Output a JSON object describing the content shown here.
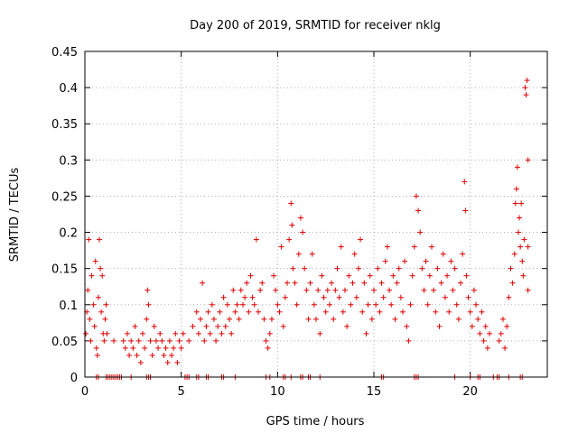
{
  "chart_data": {
    "type": "scatter",
    "title": "Day 200 of 2019, SRMTID for receiver nklg",
    "xlabel": "GPS time / hours",
    "ylabel": "SRMTID / TECUs",
    "xlim": [
      0,
      24
    ],
    "ylim": [
      0,
      0.45
    ],
    "x_ticks": [
      0,
      5,
      10,
      15,
      20
    ],
    "y_ticks": [
      0,
      0.05,
      0.1,
      0.15,
      0.2,
      0.25,
      0.3,
      0.35,
      0.4,
      0.45
    ],
    "grid": true,
    "marker": "+",
    "color": "#e00000",
    "series": [
      {
        "values": [
          [
            0.05,
            0.06
          ],
          [
            0.1,
            0.09
          ],
          [
            0.15,
            0.12
          ],
          [
            0.2,
            0.19
          ],
          [
            0.25,
            0.08
          ],
          [
            0.3,
            0.05
          ],
          [
            0.35,
            0.14
          ],
          [
            0.45,
            0.1
          ],
          [
            0.5,
            0.07
          ],
          [
            0.55,
            0.16
          ],
          [
            0.6,
            0.04
          ],
          [
            0.65,
            0.03
          ],
          [
            0.7,
            0.11
          ],
          [
            0.75,
            0.19
          ],
          [
            0.8,
            0.15
          ],
          [
            0.85,
            0.09
          ],
          [
            0.9,
            0.14
          ],
          [
            0.95,
            0.06
          ],
          [
            1.0,
            0.05
          ],
          [
            1.05,
            0.08
          ],
          [
            1.1,
            0.1
          ],
          [
            1.15,
            0.06
          ],
          [
            1.5,
            0.05
          ],
          [
            2.0,
            0.05
          ],
          [
            2.1,
            0.04
          ],
          [
            2.2,
            0.06
          ],
          [
            2.3,
            0.03
          ],
          [
            2.4,
            0.05
          ],
          [
            2.5,
            0.04
          ],
          [
            2.6,
            0.07
          ],
          [
            2.7,
            0.03
          ],
          [
            2.8,
            0.05
          ],
          [
            2.9,
            0.02
          ],
          [
            3.0,
            0.06
          ],
          [
            3.1,
            0.04
          ],
          [
            3.2,
            0.08
          ],
          [
            3.25,
            0.12
          ],
          [
            3.3,
            0.1
          ],
          [
            3.4,
            0.05
          ],
          [
            3.5,
            0.03
          ],
          [
            3.6,
            0.07
          ],
          [
            3.7,
            0.05
          ],
          [
            3.8,
            0.04
          ],
          [
            3.9,
            0.06
          ],
          [
            4.0,
            0.05
          ],
          [
            4.1,
            0.03
          ],
          [
            4.2,
            0.04
          ],
          [
            4.3,
            0.02
          ],
          [
            4.4,
            0.05
          ],
          [
            4.5,
            0.03
          ],
          [
            4.6,
            0.04
          ],
          [
            4.7,
            0.06
          ],
          [
            4.8,
            0.02
          ],
          [
            4.9,
            0.05
          ],
          [
            5.0,
            0.04
          ],
          [
            5.1,
            0.06
          ],
          [
            5.4,
            0.05
          ],
          [
            5.6,
            0.07
          ],
          [
            5.8,
            0.09
          ],
          [
            5.9,
            0.06
          ],
          [
            6.0,
            0.08
          ],
          [
            6.1,
            0.13
          ],
          [
            6.2,
            0.05
          ],
          [
            6.3,
            0.07
          ],
          [
            6.4,
            0.09
          ],
          [
            6.5,
            0.06
          ],
          [
            6.6,
            0.1
          ],
          [
            6.7,
            0.08
          ],
          [
            6.8,
            0.05
          ],
          [
            6.9,
            0.07
          ],
          [
            7.0,
            0.09
          ],
          [
            7.1,
            0.06
          ],
          [
            7.2,
            0.11
          ],
          [
            7.3,
            0.07
          ],
          [
            7.4,
            0.1
          ],
          [
            7.5,
            0.08
          ],
          [
            7.6,
            0.06
          ],
          [
            7.7,
            0.12
          ],
          [
            7.8,
            0.09
          ],
          [
            7.9,
            0.1
          ],
          [
            8.0,
            0.08
          ],
          [
            8.1,
            0.12
          ],
          [
            8.2,
            0.1
          ],
          [
            8.3,
            0.11
          ],
          [
            8.4,
            0.13
          ],
          [
            8.5,
            0.09
          ],
          [
            8.6,
            0.14
          ],
          [
            8.7,
            0.11
          ],
          [
            8.8,
            0.1
          ],
          [
            8.9,
            0.19
          ],
          [
            9.0,
            0.09
          ],
          [
            9.1,
            0.12
          ],
          [
            9.2,
            0.13
          ],
          [
            9.3,
            0.08
          ],
          [
            9.4,
            0.05
          ],
          [
            9.5,
            0.04
          ],
          [
            9.6,
            0.06
          ],
          [
            9.7,
            0.08
          ],
          [
            9.8,
            0.14
          ],
          [
            9.9,
            0.12
          ],
          [
            10.0,
            0.1
          ],
          [
            10.1,
            0.09
          ],
          [
            10.2,
            0.18
          ],
          [
            10.3,
            0.07
          ],
          [
            10.4,
            0.11
          ],
          [
            10.5,
            0.13
          ],
          [
            10.6,
            0.19
          ],
          [
            10.7,
            0.24
          ],
          [
            10.75,
            0.21
          ],
          [
            10.8,
            0.15
          ],
          [
            10.9,
            0.13
          ],
          [
            11.0,
            0.1
          ],
          [
            11.1,
            0.17
          ],
          [
            11.2,
            0.22
          ],
          [
            11.3,
            0.2
          ],
          [
            11.4,
            0.15
          ],
          [
            11.5,
            0.12
          ],
          [
            11.6,
            0.08
          ],
          [
            11.7,
            0.13
          ],
          [
            11.8,
            0.17
          ],
          [
            11.9,
            0.1
          ],
          [
            12.0,
            0.08
          ],
          [
            12.1,
            0.12
          ],
          [
            12.2,
            0.06
          ],
          [
            12.3,
            0.14
          ],
          [
            12.4,
            0.11
          ],
          [
            12.5,
            0.09
          ],
          [
            12.6,
            0.12
          ],
          [
            12.7,
            0.1
          ],
          [
            12.8,
            0.13
          ],
          [
            12.9,
            0.08
          ],
          [
            13.0,
            0.12
          ],
          [
            13.1,
            0.15
          ],
          [
            13.2,
            0.11
          ],
          [
            13.3,
            0.18
          ],
          [
            13.4,
            0.09
          ],
          [
            13.5,
            0.12
          ],
          [
            13.6,
            0.07
          ],
          [
            13.7,
            0.14
          ],
          [
            13.8,
            0.1
          ],
          [
            13.9,
            0.13
          ],
          [
            14.0,
            0.17
          ],
          [
            14.1,
            0.11
          ],
          [
            14.2,
            0.15
          ],
          [
            14.3,
            0.19
          ],
          [
            14.4,
            0.09
          ],
          [
            14.5,
            0.13
          ],
          [
            14.6,
            0.06
          ],
          [
            14.7,
            0.1
          ],
          [
            14.8,
            0.14
          ],
          [
            14.9,
            0.08
          ],
          [
            15.0,
            0.12
          ],
          [
            15.1,
            0.1
          ],
          [
            15.2,
            0.15
          ],
          [
            15.3,
            0.09
          ],
          [
            15.4,
            0.13
          ],
          [
            15.5,
            0.11
          ],
          [
            15.6,
            0.16
          ],
          [
            15.7,
            0.18
          ],
          [
            15.8,
            0.12
          ],
          [
            15.9,
            0.1
          ],
          [
            16.0,
            0.14
          ],
          [
            16.1,
            0.08
          ],
          [
            16.2,
            0.13
          ],
          [
            16.3,
            0.15
          ],
          [
            16.4,
            0.11
          ],
          [
            16.5,
            0.09
          ],
          [
            16.6,
            0.16
          ],
          [
            16.7,
            0.07
          ],
          [
            16.8,
            0.05
          ],
          [
            16.9,
            0.1
          ],
          [
            17.0,
            0.14
          ],
          [
            17.1,
            0.18
          ],
          [
            17.2,
            0.25
          ],
          [
            17.3,
            0.23
          ],
          [
            17.4,
            0.2
          ],
          [
            17.5,
            0.15
          ],
          [
            17.6,
            0.12
          ],
          [
            17.7,
            0.16
          ],
          [
            17.8,
            0.1
          ],
          [
            17.9,
            0.14
          ],
          [
            18.0,
            0.18
          ],
          [
            18.1,
            0.12
          ],
          [
            18.2,
            0.09
          ],
          [
            18.3,
            0.15
          ],
          [
            18.4,
            0.07
          ],
          [
            18.5,
            0.13
          ],
          [
            18.6,
            0.17
          ],
          [
            18.7,
            0.11
          ],
          [
            18.8,
            0.14
          ],
          [
            18.9,
            0.09
          ],
          [
            19.0,
            0.16
          ],
          [
            19.1,
            0.12
          ],
          [
            19.2,
            0.15
          ],
          [
            19.3,
            0.1
          ],
          [
            19.4,
            0.08
          ],
          [
            19.5,
            0.13
          ],
          [
            19.6,
            0.17
          ],
          [
            19.7,
            0.27
          ],
          [
            19.75,
            0.23
          ],
          [
            19.8,
            0.14
          ],
          [
            19.9,
            0.11
          ],
          [
            20.0,
            0.09
          ],
          [
            20.1,
            0.07
          ],
          [
            20.2,
            0.12
          ],
          [
            20.3,
            0.1
          ],
          [
            20.4,
            0.08
          ],
          [
            20.5,
            0.06
          ],
          [
            20.6,
            0.09
          ],
          [
            20.7,
            0.05
          ],
          [
            20.8,
            0.07
          ],
          [
            20.9,
            0.04
          ],
          [
            21.0,
            0.06
          ],
          [
            21.5,
            0.05
          ],
          [
            21.6,
            0.06
          ],
          [
            21.7,
            0.08
          ],
          [
            21.8,
            0.04
          ],
          [
            21.9,
            0.07
          ],
          [
            22.0,
            0.11
          ],
          [
            22.1,
            0.15
          ],
          [
            22.2,
            0.13
          ],
          [
            22.3,
            0.17
          ],
          [
            22.35,
            0.24
          ],
          [
            22.4,
            0.26
          ],
          [
            22.45,
            0.29
          ],
          [
            22.5,
            0.2
          ],
          [
            22.55,
            0.22
          ],
          [
            22.6,
            0.18
          ],
          [
            22.65,
            0.24
          ],
          [
            22.7,
            0.16
          ],
          [
            22.75,
            0.14
          ],
          [
            22.8,
            0.19
          ],
          [
            22.85,
            0.4
          ],
          [
            22.9,
            0.39
          ],
          [
            22.95,
            0.41
          ],
          [
            23.0,
            0.3
          ],
          [
            23.0,
            0.18
          ],
          [
            23.0,
            0.12
          ]
        ]
      }
    ],
    "zero_x": [
      0.6,
      0.7,
      1.1,
      1.2,
      1.3,
      1.4,
      1.5,
      1.6,
      1.7,
      1.8,
      1.9,
      2.4,
      3.2,
      3.3,
      3.4,
      5.2,
      5.3,
      5.4,
      5.8,
      5.9,
      6.3,
      6.4,
      7.1,
      7.2,
      7.8,
      9.4,
      9.6,
      10.3,
      10.4,
      10.7,
      11.2,
      11.3,
      11.6,
      11.7,
      12.2,
      15.4,
      15.5,
      17.1,
      17.2,
      17.3,
      19.2,
      20.0,
      20.4,
      20.5,
      21.2,
      21.4,
      21.5,
      22.0,
      22.6,
      22.7
    ]
  }
}
